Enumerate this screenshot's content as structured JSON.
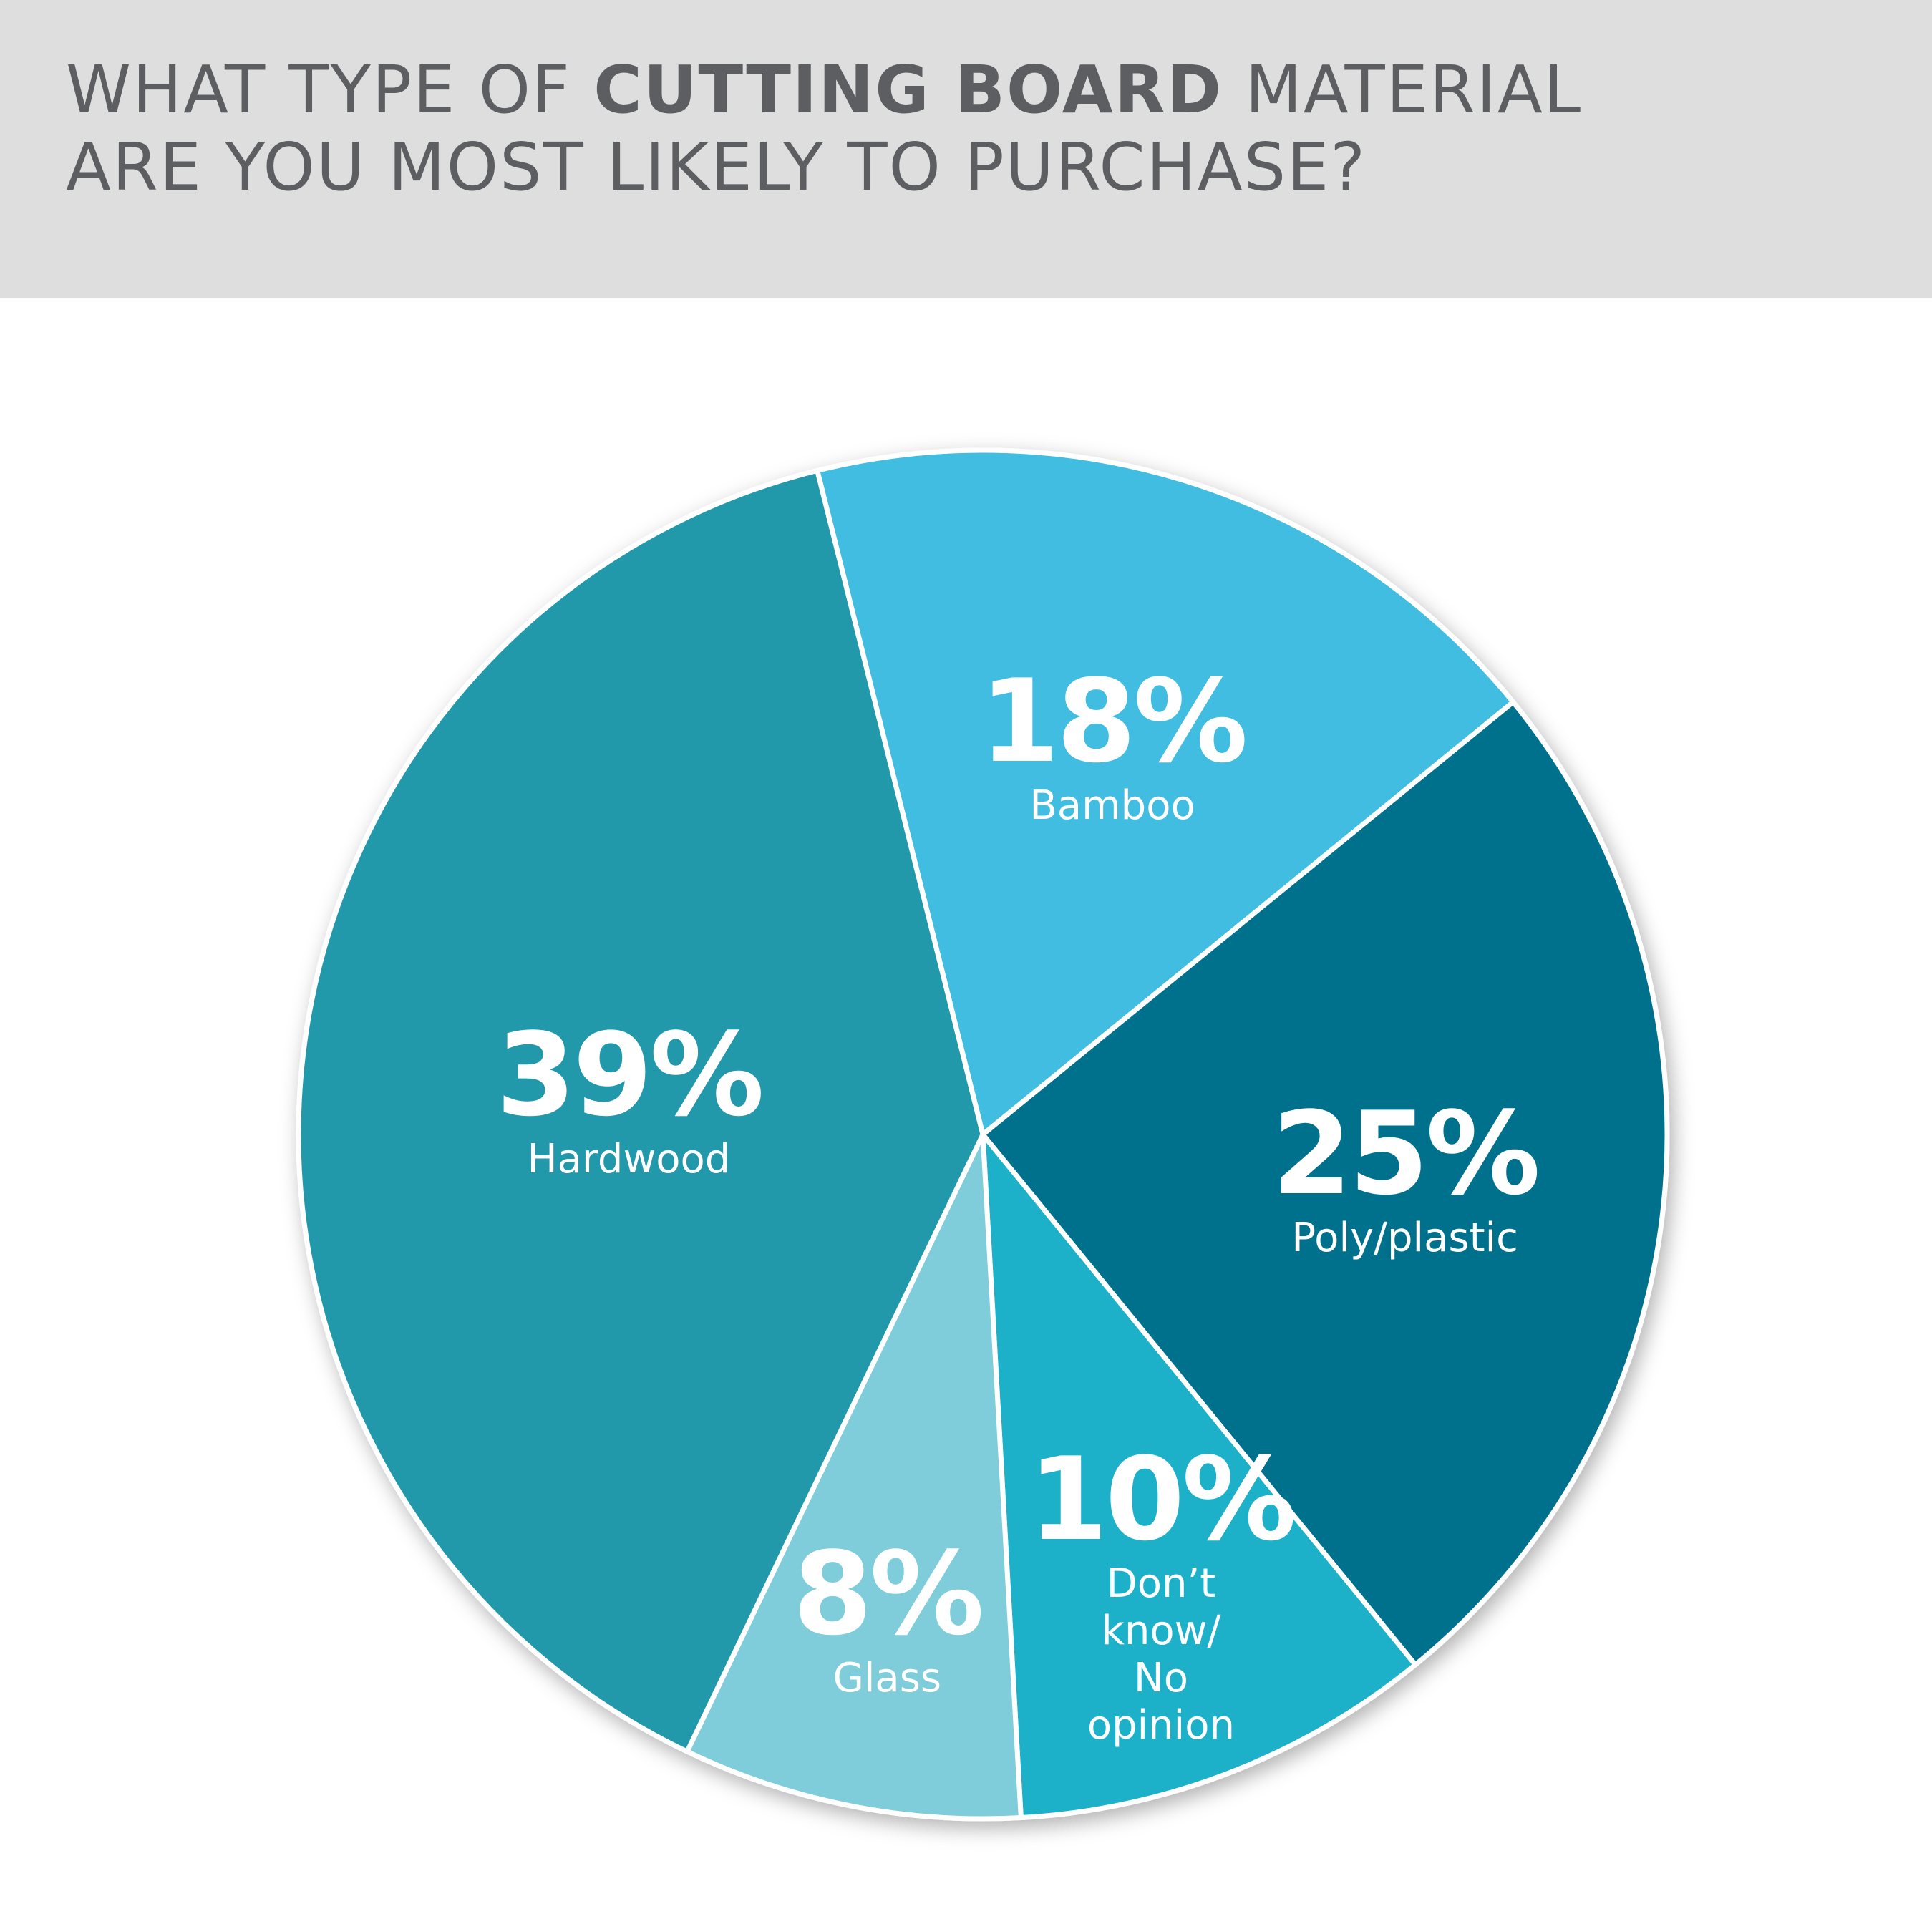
{
  "chart_data": {
    "type": "pie",
    "title": [
      "WHAT TYPE OF ",
      "CUTTING BOARD",
      " MATERIAL",
      "ARE YOU MOST LIKELY TO PURCHASE?"
    ],
    "categories": [
      "Bamboo",
      "Poly/plastic",
      "Don’t know/ No opinion",
      "Glass",
      "Hardwood"
    ],
    "values": [
      18,
      25,
      10,
      8,
      39
    ],
    "value_labels": [
      "18%",
      "25%",
      "10%",
      "8%",
      "39%"
    ],
    "colors": [
      "#3fbde0",
      "#02718c",
      "#1ab1c9",
      "#7fcdda",
      "#2098ab"
    ]
  }
}
